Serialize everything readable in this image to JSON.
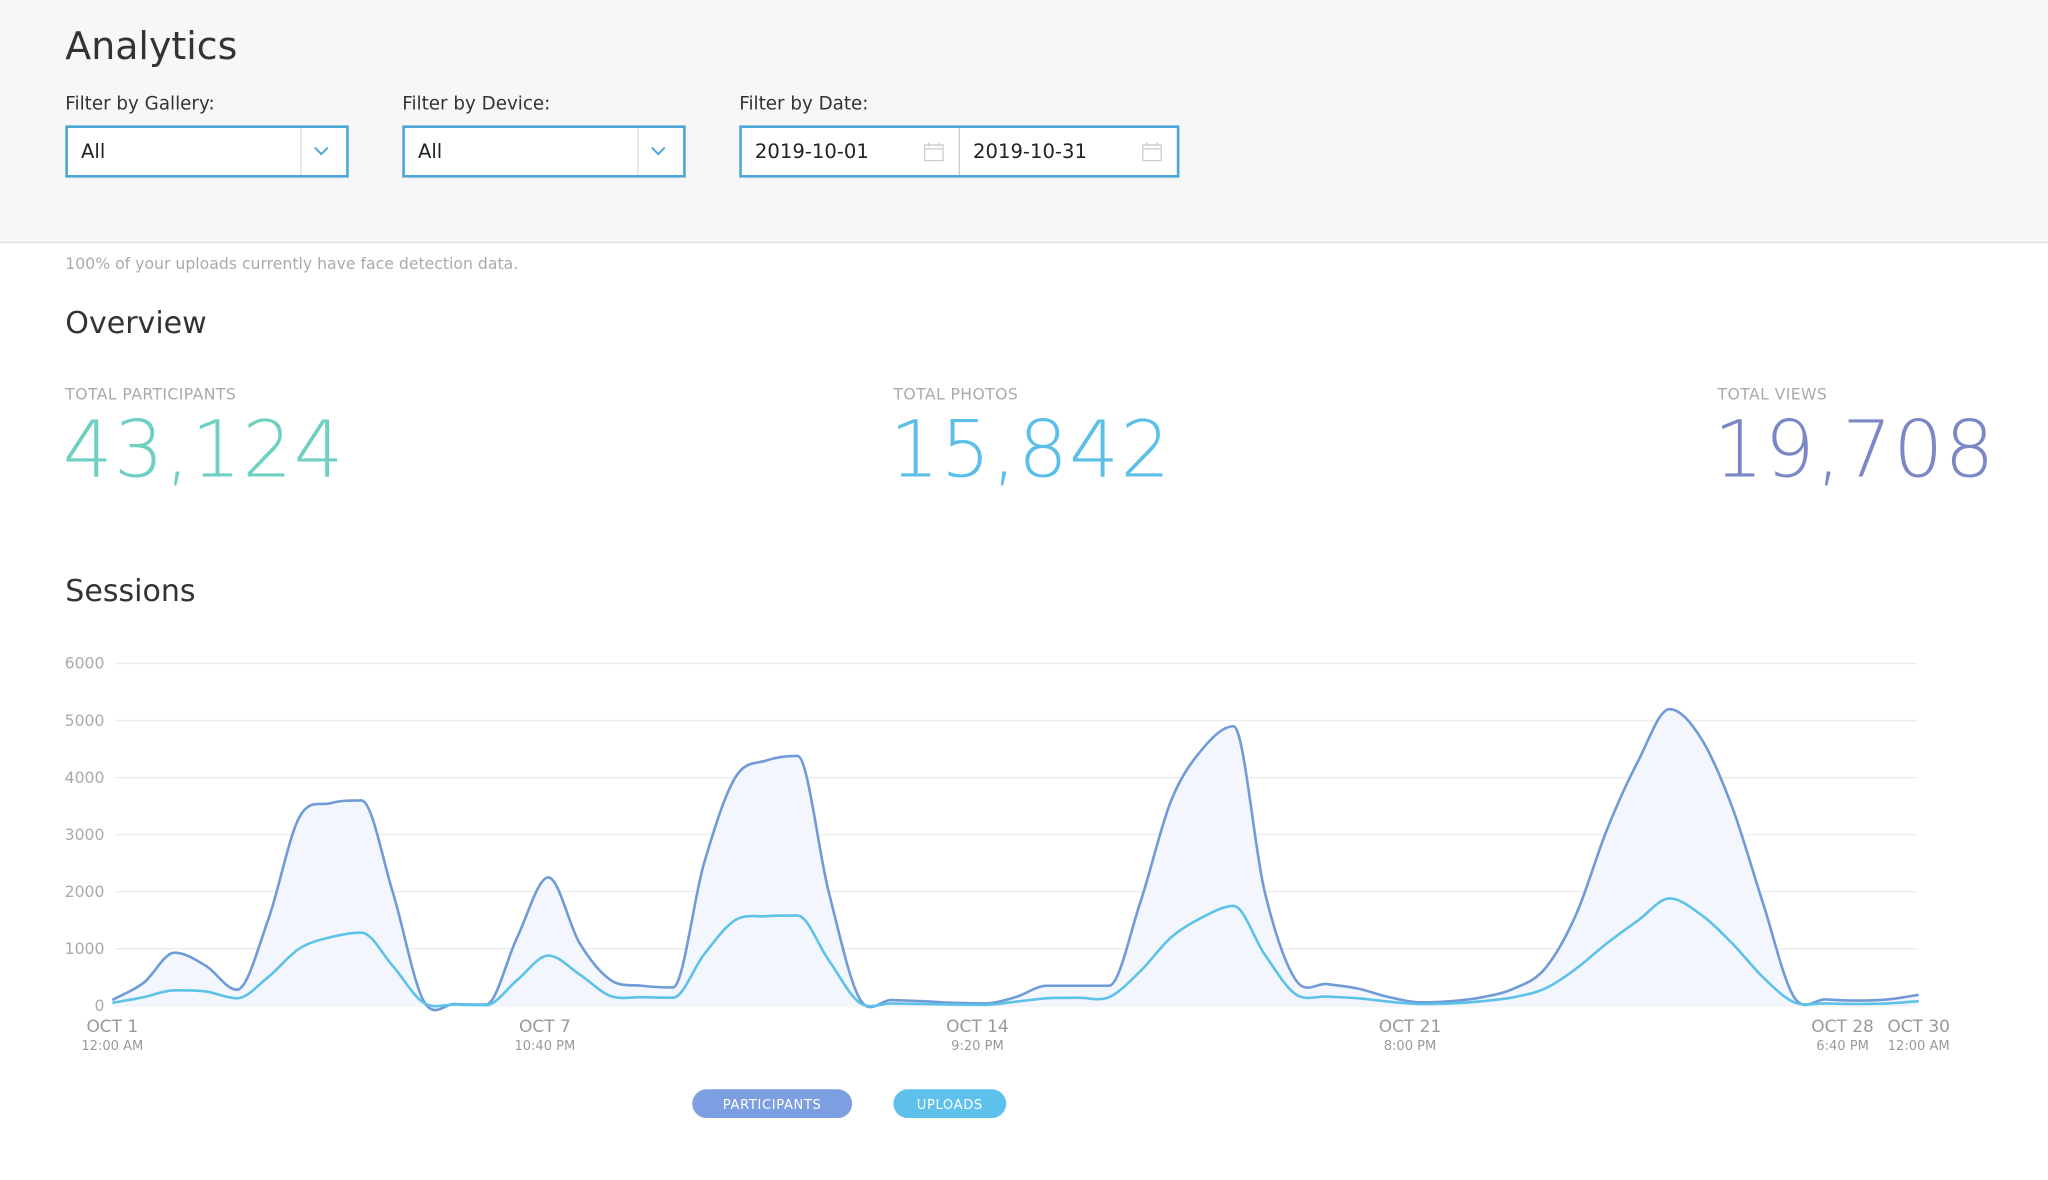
{
  "header": {
    "title": "Analytics",
    "filters": [
      {
        "label": "Filter by Gallery:",
        "value": "All"
      },
      {
        "label": "Filter by Device:",
        "value": "All"
      },
      {
        "label": "Filter by Date:",
        "start": "2019-10-01",
        "end": "2019-10-31"
      }
    ]
  },
  "notice": "100% of your uploads currently have face detection data.",
  "overview": {
    "title": "Overview",
    "stats": [
      {
        "label": "TOTAL PARTICIPANTS",
        "value": "43,124",
        "color": "#6fd0c2"
      },
      {
        "label": "TOTAL PHOTOS",
        "value": "15,842",
        "color": "#5cbfe8"
      },
      {
        "label": "TOTAL VIEWS",
        "value": "19,708",
        "color": "#7c87c6"
      }
    ]
  },
  "chart_data": {
    "type": "line",
    "title": "Sessions",
    "x": [
      "OCT 1 12:00 AM",
      "OCT 1 12:00 PM",
      "OCT 2 12:00 AM",
      "OCT 2 12:00 PM",
      "OCT 3 12:00 AM",
      "OCT 3 12:00 PM",
      "OCT 4 12:00 AM",
      "OCT 4 12:00 PM",
      "OCT 5 12:00 AM",
      "OCT 5 12:00 PM",
      "OCT 6 12:00 AM",
      "OCT 6 12:00 PM",
      "OCT 7 12:00 AM",
      "OCT 7 12:00 PM",
      "OCT 8 12:00 AM",
      "OCT 8 12:00 PM",
      "OCT 9 12:00 AM",
      "OCT 9 12:00 PM",
      "OCT 10 12:00 AM",
      "OCT 10 12:00 PM",
      "OCT 11 12:00 AM",
      "OCT 11 12:00 PM",
      "OCT 12 12:00 AM",
      "OCT 12 12:00 PM",
      "OCT 13 12:00 AM",
      "OCT 13 12:00 PM",
      "OCT 14 12:00 AM",
      "OCT 14 12:00 PM",
      "OCT 15 12:00 AM",
      "OCT 15 12:00 PM",
      "OCT 16 12:00 AM",
      "OCT 16 12:00 PM",
      "OCT 17 12:00 AM",
      "OCT 17 12:00 PM",
      "OCT 18 12:00 AM",
      "OCT 18 12:00 PM",
      "OCT 19 12:00 AM",
      "OCT 19 12:00 PM",
      "OCT 20 12:00 AM",
      "OCT 20 12:00 PM",
      "OCT 21 12:00 AM",
      "OCT 21 12:00 PM",
      "OCT 22 12:00 AM",
      "OCT 22 12:00 PM",
      "OCT 23 12:00 AM",
      "OCT 23 12:00 PM",
      "OCT 24 12:00 AM",
      "OCT 24 12:00 PM",
      "OCT 25 12:00 AM",
      "OCT 25 12:00 PM",
      "OCT 26 12:00 AM",
      "OCT 26 12:00 PM",
      "OCT 27 12:00 AM",
      "OCT 27 12:00 PM",
      "OCT 28 12:00 AM",
      "OCT 28 12:00 PM",
      "OCT 29 12:00 AM",
      "OCT 29 12:00 PM",
      "OCT 30 12:00 AM"
    ],
    "series": [
      {
        "name": "PARTICIPANTS",
        "color": "#6f9bd6",
        "legend_color": "#7b9fe0",
        "area_color": "#f3f7fd",
        "values": [
          100,
          400,
          930,
          700,
          280,
          1500,
          3300,
          3550,
          3600,
          2000,
          80,
          30,
          20,
          1200,
          2250,
          1100,
          450,
          350,
          320,
          2500,
          4000,
          4300,
          4380,
          2000,
          120,
          100,
          80,
          50,
          40,
          150,
          350,
          350,
          350,
          1800,
          3600,
          4500,
          4900,
          2000,
          450,
          380,
          300,
          150,
          60,
          80,
          150,
          300,
          650,
          1600,
          3100,
          4300,
          5200,
          4700,
          3500,
          1800,
          150,
          110,
          90,
          110,
          190
        ]
      },
      {
        "name": "UPLOADS",
        "color": "#5ec1e8",
        "legend_color": "#5ec1ec",
        "values": [
          50,
          150,
          270,
          250,
          130,
          500,
          1000,
          1200,
          1280,
          700,
          50,
          20,
          10,
          450,
          880,
          550,
          170,
          150,
          140,
          900,
          1500,
          1570,
          1580,
          800,
          50,
          40,
          30,
          20,
          15,
          70,
          130,
          140,
          150,
          600,
          1200,
          1550,
          1750,
          900,
          200,
          160,
          130,
          70,
          30,
          40,
          80,
          150,
          300,
          650,
          1100,
          1500,
          1880,
          1600,
          1100,
          500,
          60,
          40,
          30,
          40,
          80
        ]
      }
    ],
    "xlim": [
      "OCT 1 12:00 AM",
      "OCT 30 12:00 AM"
    ],
    "xticks": [
      {
        "date": "OCT 1",
        "time": "12:00 AM"
      },
      {
        "date": "OCT 7",
        "time": "10:40 PM"
      },
      {
        "date": "OCT 14",
        "time": "9:20 PM"
      },
      {
        "date": "OCT 21",
        "time": "8:00 PM"
      },
      {
        "date": "OCT 28",
        "time": "6:40 PM"
      },
      {
        "date": "OCT 30",
        "time": "12:00 AM"
      }
    ],
    "ylim": [
      0,
      6000
    ],
    "yticks": [
      0,
      1000,
      2000,
      3000,
      4000,
      5000,
      6000
    ],
    "grid": true
  }
}
